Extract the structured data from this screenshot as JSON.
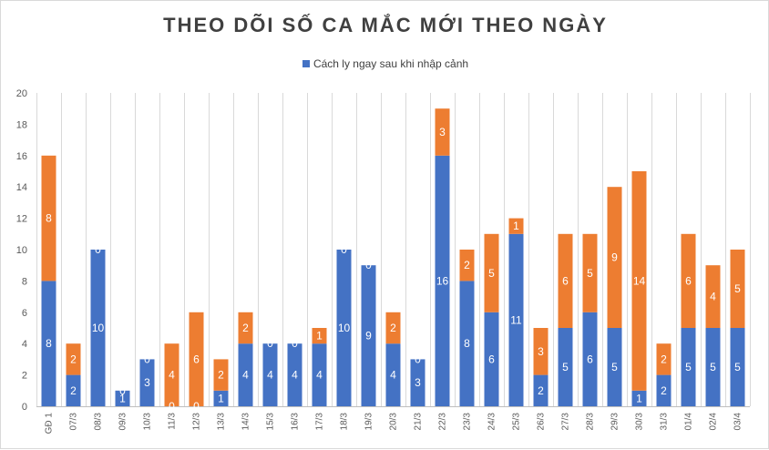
{
  "chart_data": {
    "type": "bar",
    "stacked": true,
    "title": "THEO DÕI SỐ CA MẮC MỚI THEO NGÀY",
    "legend": {
      "position": "top",
      "entries": [
        "Cách ly ngay sau khi nhập cảnh"
      ]
    },
    "categories": [
      "GĐ 1",
      "07/3",
      "08/3",
      "09/3",
      "10/3",
      "11/3",
      "12/3",
      "13/3",
      "14/3",
      "15/3",
      "16/3",
      "17/3",
      "18/3",
      "19/3",
      "20/3",
      "21/3",
      "22/3",
      "23/3",
      "24/3",
      "25/3",
      "26/3",
      "27/3",
      "28/3",
      "29/3",
      "30/3",
      "31/3",
      "01/4",
      "02/4",
      "03/4"
    ],
    "series": [
      {
        "name": "Cách ly ngay sau khi nhập cảnh",
        "color": "#4472C4",
        "values": [
          8,
          2,
          10,
          1,
          3,
          0,
          0,
          1,
          4,
          4,
          4,
          4,
          10,
          9,
          4,
          3,
          16,
          8,
          6,
          11,
          2,
          5,
          6,
          5,
          1,
          2,
          5,
          5,
          5
        ]
      },
      {
        "name": "",
        "color": "#ED7D31",
        "values": [
          8,
          2,
          0,
          0,
          0,
          4,
          6,
          2,
          2,
          0,
          0,
          1,
          0,
          0,
          2,
          0,
          3,
          2,
          5,
          1,
          3,
          6,
          5,
          9,
          14,
          2,
          6,
          4,
          5
        ]
      }
    ],
    "ylim": [
      0,
      20
    ],
    "yticks": [
      0,
      2,
      4,
      6,
      8,
      10,
      12,
      14,
      16,
      18,
      20
    ],
    "grid": "vertical"
  }
}
